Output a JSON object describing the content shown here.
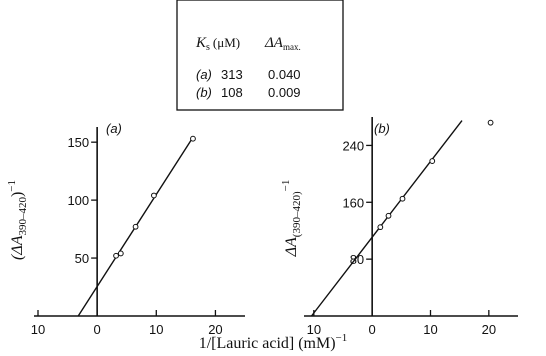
{
  "table": {
    "col_ks_symbol": "K",
    "col_ks_sub": "s",
    "col_ks_unit": "(μM)",
    "col_da_symbol": "ΔA",
    "col_da_sub": "max.",
    "rows": [
      {
        "label": "(a)",
        "ks": "313",
        "da": "0.040"
      },
      {
        "label": "(b)",
        "ks": "108",
        "da": "0.009"
      }
    ]
  },
  "xlabel": "1/[Lauric acid] (mM)",
  "xlabel_exp": "−1",
  "chart_data": [
    {
      "type": "scatter",
      "panel_label": "(a)",
      "ylabel": "(ΔA",
      "ylabel_sub": "390–420",
      "ylabel_tail": ")",
      "ylabel_exp": "−1",
      "xlim": [
        -10,
        25
      ],
      "ylim": [
        0,
        170
      ],
      "xticks": [
        -10,
        0,
        10,
        20
      ],
      "xtick_labels": [
        "10",
        "0",
        "10",
        "20"
      ],
      "yticks": [
        50,
        100,
        150
      ],
      "ytick_labels": [
        "50",
        "100",
        "150"
      ],
      "points": [
        {
          "x": 3.2,
          "y": 52
        },
        {
          "x": 4.0,
          "y": 54
        },
        {
          "x": 6.5,
          "y": 77
        },
        {
          "x": 9.6,
          "y": 104
        },
        {
          "x": 16.2,
          "y": 153
        }
      ],
      "fit_line": {
        "x": [
          -3.2,
          16.3
        ],
        "y": [
          0,
          155
        ]
      }
    },
    {
      "type": "scatter",
      "panel_label": "(b)",
      "ylabel": "ΔA",
      "ylabel_sub": "(390–420)",
      "ylabel_exp": "−1",
      "xlim": [
        -11,
        25
      ],
      "ylim": [
        0,
        280
      ],
      "xticks": [
        -10,
        0,
        10,
        20
      ],
      "xtick_labels": [
        "10",
        "0",
        "10",
        "20"
      ],
      "yticks": [
        80,
        160,
        240
      ],
      "ytick_labels": [
        "80",
        "160",
        "240"
      ],
      "points": [
        {
          "x": 1.4,
          "y": 125
        },
        {
          "x": 2.8,
          "y": 141
        },
        {
          "x": 5.2,
          "y": 165
        },
        {
          "x": 10.3,
          "y": 218
        },
        {
          "x": 20.3,
          "y": 272
        }
      ],
      "fit_line": {
        "x": [
          -10.4,
          15.4
        ],
        "y": [
          0,
          275
        ]
      }
    }
  ]
}
